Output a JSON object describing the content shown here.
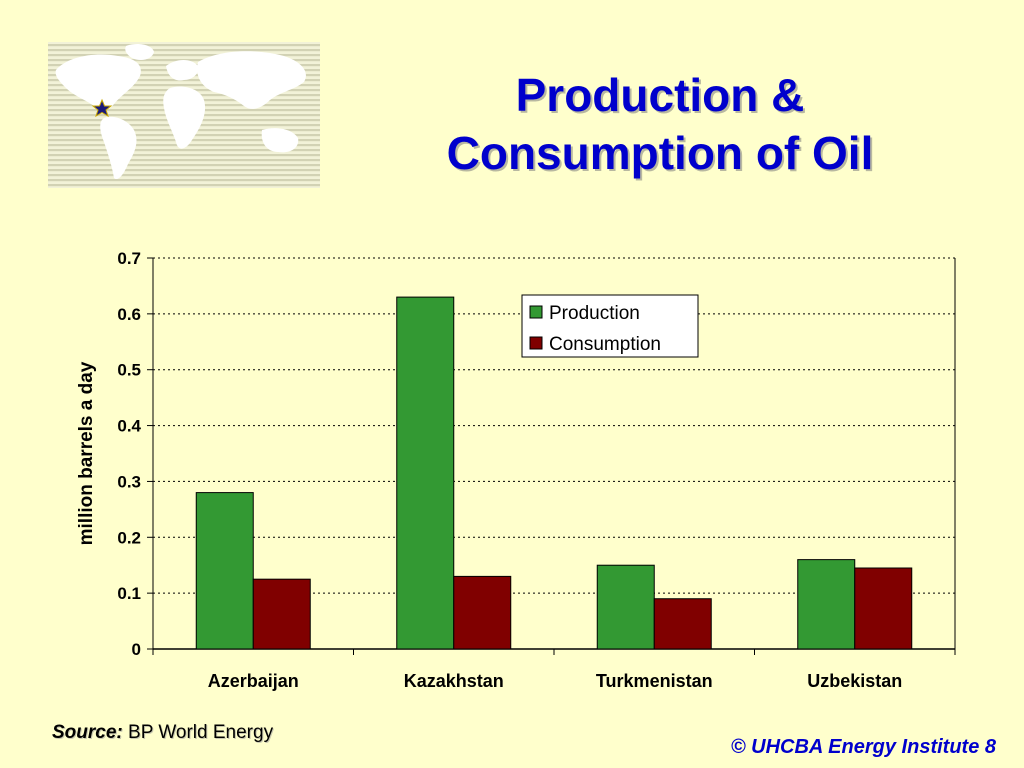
{
  "slide": {
    "title_lines": [
      "Production &",
      "Consumption of Oil"
    ],
    "source_label": "Source:",
    "source_text": "BP World Energy",
    "footer": "© UHCBA Energy Institute 8"
  },
  "colors": {
    "production": "#339933",
    "consumption": "#800000",
    "title": "#0000cc",
    "background": "#ffffcc"
  },
  "chart_data": {
    "type": "bar",
    "categories": [
      "Azerbaijan",
      "Kazakhstan",
      "Turkmenistan",
      "Uzbekistan"
    ],
    "series": [
      {
        "name": "Production",
        "values": [
          0.28,
          0.63,
          0.15,
          0.16
        ]
      },
      {
        "name": "Consumption",
        "values": [
          0.125,
          0.13,
          0.09,
          0.145
        ]
      }
    ],
    "ylabel": "million barrels a day",
    "ylim": [
      0,
      0.7
    ],
    "yticks": [
      "0",
      "0.1",
      "0.2",
      "0.3",
      "0.4",
      "0.5",
      "0.6",
      "0.7"
    ],
    "grid": true,
    "legend": "top-right"
  }
}
